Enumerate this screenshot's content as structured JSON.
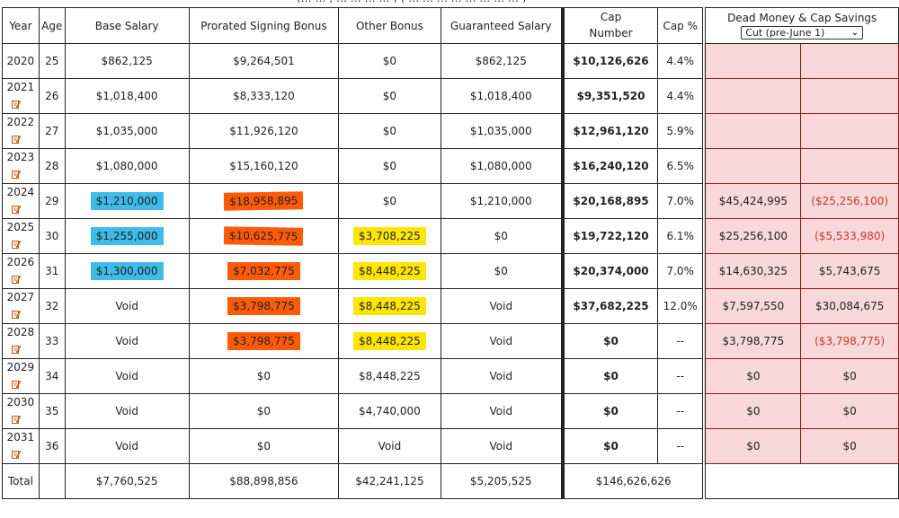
{
  "top_cut_text": "(… … , … … … … ) ( … … … … … … … … )",
  "headers": {
    "year": "Year",
    "age": "Age",
    "base": "Base Salary",
    "prorated": "Prorated Signing Bonus",
    "other": "Other Bonus",
    "guaranteed": "Guaranteed Salary",
    "cap_line1": "Cap",
    "cap_line2": "Number",
    "cap_pct": "Cap %",
    "dead": "Dead Money & Cap Savings",
    "select_value": "Cut (pre-June 1)"
  },
  "rows": [
    {
      "year": "2020",
      "age": "25",
      "base": "$862,125",
      "prorated": "$9,264,501",
      "other": "$0",
      "guaranteed": "$862,125",
      "cap": "$10,126,626",
      "pct": "4.4%",
      "dead": "",
      "savings": ""
    },
    {
      "year": "2021",
      "age": "26",
      "base": "$1,018,400",
      "prorated": "$8,333,120",
      "other": "$0",
      "guaranteed": "$1,018,400",
      "cap": "$9,351,520",
      "pct": "4.4%",
      "dead": "",
      "savings": ""
    },
    {
      "year": "2022",
      "age": "27",
      "base": "$1,035,000",
      "prorated": "$11,926,120",
      "other": "$0",
      "guaranteed": "$1,035,000",
      "cap": "$12,961,120",
      "pct": "5.9%",
      "dead": "",
      "savings": ""
    },
    {
      "year": "2023",
      "age": "28",
      "base": "$1,080,000",
      "prorated": "$15,160,120",
      "other": "$0",
      "guaranteed": "$1,080,000",
      "cap": "$16,240,120",
      "pct": "6.5%",
      "dead": "",
      "savings": ""
    },
    {
      "year": "2024",
      "age": "29",
      "base": "$1,210,000",
      "prorated": "$18,958,895",
      "other": "$0",
      "guaranteed": "$1,210,000",
      "cap": "$20,168,895",
      "pct": "7.0%",
      "dead": "$45,424,995",
      "savings": "($25,256,100)"
    },
    {
      "year": "2025",
      "age": "30",
      "base": "$1,255,000",
      "prorated": "$10,625,775",
      "other": "$3,708,225",
      "guaranteed": "$0",
      "cap": "$19,722,120",
      "pct": "6.1%",
      "dead": "$25,256,100",
      "savings": "($5,533,980)"
    },
    {
      "year": "2026",
      "age": "31",
      "base": "$1,300,000",
      "prorated": "$7,032,775",
      "other": "$8,448,225",
      "guaranteed": "$0",
      "cap": "$20,374,000",
      "pct": "7.0%",
      "dead": "$14,630,325",
      "savings": "$5,743,675"
    },
    {
      "year": "2027",
      "age": "32",
      "base": "Void",
      "prorated": "$3,798,775",
      "other": "$8,448,225",
      "guaranteed": "Void",
      "cap": "$37,682,225",
      "pct": "12.0%",
      "dead": "$7,597,550",
      "savings": "$30,084,675"
    },
    {
      "year": "2028",
      "age": "33",
      "base": "Void",
      "prorated": "$3,798,775",
      "other": "$8,448,225",
      "guaranteed": "Void",
      "cap": "$0",
      "pct": "--",
      "dead": "$3,798,775",
      "savings": "($3,798,775)"
    },
    {
      "year": "2029",
      "age": "34",
      "base": "Void",
      "prorated": "$0",
      "other": "$8,448,225",
      "guaranteed": "Void",
      "cap": "$0",
      "pct": "--",
      "dead": "$0",
      "savings": "$0"
    },
    {
      "year": "2030",
      "age": "35",
      "base": "Void",
      "prorated": "$0",
      "other": "$4,740,000",
      "guaranteed": "Void",
      "cap": "$0",
      "pct": "--",
      "dead": "$0",
      "savings": "$0"
    },
    {
      "year": "2031",
      "age": "36",
      "base": "Void",
      "prorated": "$0",
      "other": "Void",
      "guaranteed": "Void",
      "cap": "$0",
      "pct": "--",
      "dead": "$0",
      "savings": "$0"
    }
  ],
  "totals": {
    "label": "Total",
    "base": "$7,760,525",
    "prorated": "$88,898,856",
    "other": "$42,241,125",
    "guaranteed": "$5,205,525",
    "cap": "$146,626,626"
  },
  "colors": {
    "blue_highlight": "#3dbbe9",
    "orange_highlight": "#ff5a08",
    "yellow_highlight": "#ffe601",
    "dead_bg": "#f9d8da",
    "negative_text": "#c0392b"
  },
  "icons": {
    "edit": "edit-icon"
  }
}
